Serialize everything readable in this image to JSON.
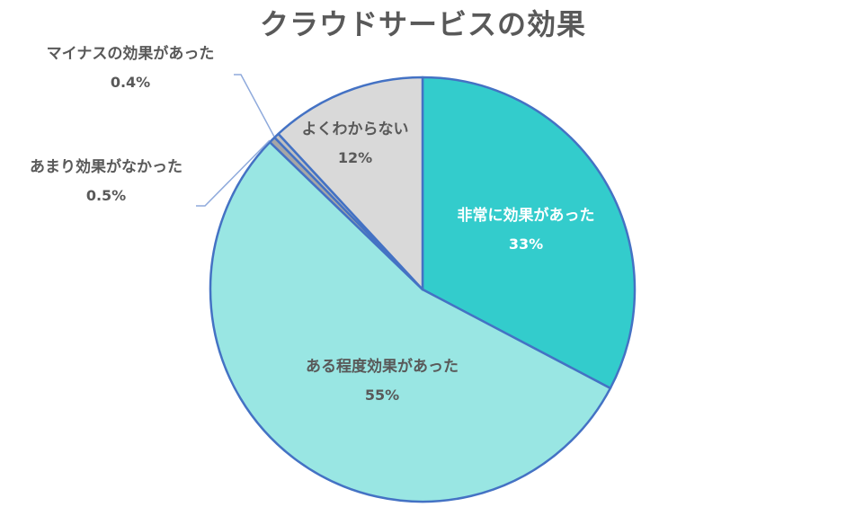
{
  "chart_data": {
    "type": "pie",
    "title": "クラウドサービスの効果",
    "categories": [
      "非常に効果があった",
      "ある程度効果があった",
      "あまり効果がなかった",
      "マイナスの効果があった",
      "よくわからない"
    ],
    "values": [
      33,
      55,
      0.5,
      0.4,
      12
    ],
    "value_labels": [
      "33%",
      "55%",
      "0.5%",
      "0.4%",
      "12%"
    ],
    "colors": [
      "#33CCCC",
      "#99E6E3",
      "#A6A6A6",
      "#BFBFBF",
      "#D9D9D9"
    ],
    "border_color": "#4472C4",
    "start_angle_deg": 0,
    "direction": "clockwise",
    "legend": "none (data labels)"
  },
  "labels": {
    "very": {
      "name": "非常に効果があった",
      "pct": "33%"
    },
    "somewhat": {
      "name": "ある程度効果があった",
      "pct": "55%"
    },
    "notmuch": {
      "name": "あまり効果がなかった",
      "pct": "0.5%"
    },
    "negative": {
      "name": "マイナスの効果があった",
      "pct": "0.4%"
    },
    "unknown": {
      "name": "よくわからない",
      "pct": "12%"
    }
  }
}
